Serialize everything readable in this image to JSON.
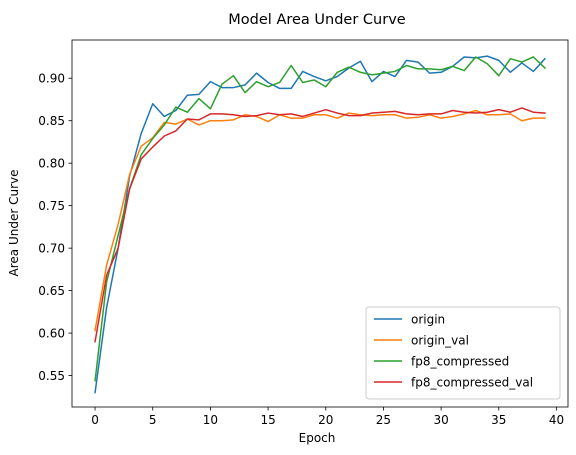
{
  "chart_data": {
    "type": "line",
    "title": "Model Area Under Curve",
    "xlabel": "Epoch",
    "ylabel": "Area Under Curve",
    "xlim": [
      -2,
      41
    ],
    "ylim": [
      0.513,
      0.945
    ],
    "xticks": [
      0,
      5,
      10,
      15,
      20,
      25,
      30,
      35,
      40
    ],
    "yticks": [
      0.55,
      0.6,
      0.65,
      0.7,
      0.75,
      0.8,
      0.85,
      0.9
    ],
    "ytick_labels": [
      "0.55",
      "0.60",
      "0.65",
      "0.70",
      "0.75",
      "0.80",
      "0.85",
      "0.90"
    ],
    "grid": false,
    "legend_position": "lower-right",
    "x": [
      0,
      1,
      2,
      3,
      4,
      5,
      6,
      7,
      8,
      9,
      10,
      11,
      12,
      13,
      14,
      15,
      16,
      17,
      18,
      19,
      20,
      21,
      22,
      23,
      24,
      25,
      26,
      27,
      28,
      29,
      30,
      31,
      32,
      33,
      34,
      35,
      36,
      37,
      38,
      39
    ],
    "series": [
      {
        "name": "origin",
        "color": "#1f77b4",
        "values": [
          0.53,
          0.63,
          0.7,
          0.785,
          0.835,
          0.87,
          0.855,
          0.862,
          0.88,
          0.881,
          0.896,
          0.889,
          0.889,
          0.892,
          0.906,
          0.895,
          0.888,
          0.888,
          0.908,
          0.902,
          0.897,
          0.902,
          0.912,
          0.92,
          0.896,
          0.908,
          0.902,
          0.921,
          0.919,
          0.906,
          0.907,
          0.914,
          0.925,
          0.924,
          0.926,
          0.921,
          0.907,
          0.918,
          0.908,
          0.923
        ]
      },
      {
        "name": "origin_val",
        "color": "#ff7f0e",
        "values": [
          0.603,
          0.68,
          0.728,
          0.787,
          0.82,
          0.83,
          0.848,
          0.846,
          0.852,
          0.845,
          0.85,
          0.85,
          0.851,
          0.857,
          0.855,
          0.849,
          0.857,
          0.853,
          0.853,
          0.857,
          0.857,
          0.853,
          0.859,
          0.857,
          0.856,
          0.857,
          0.857,
          0.853,
          0.854,
          0.857,
          0.853,
          0.855,
          0.858,
          0.862,
          0.857,
          0.857,
          0.858,
          0.85,
          0.853,
          0.853
        ]
      },
      {
        "name": "fp8_compressed",
        "color": "#2ca02c",
        "values": [
          0.544,
          0.66,
          0.715,
          0.77,
          0.81,
          0.829,
          0.845,
          0.866,
          0.86,
          0.876,
          0.864,
          0.893,
          0.903,
          0.883,
          0.896,
          0.89,
          0.895,
          0.915,
          0.895,
          0.898,
          0.89,
          0.907,
          0.913,
          0.907,
          0.904,
          0.906,
          0.908,
          0.915,
          0.911,
          0.911,
          0.91,
          0.914,
          0.909,
          0.925,
          0.917,
          0.903,
          0.923,
          0.919,
          0.925,
          0.912
        ]
      },
      {
        "name": "fp8_compressed_val",
        "color": "#d62728",
        "values": [
          0.59,
          0.668,
          0.7,
          0.77,
          0.805,
          0.819,
          0.832,
          0.838,
          0.852,
          0.851,
          0.858,
          0.858,
          0.857,
          0.855,
          0.856,
          0.859,
          0.857,
          0.858,
          0.855,
          0.859,
          0.863,
          0.859,
          0.856,
          0.856,
          0.859,
          0.86,
          0.861,
          0.858,
          0.857,
          0.858,
          0.858,
          0.862,
          0.86,
          0.859,
          0.86,
          0.863,
          0.86,
          0.865,
          0.86,
          0.859
        ]
      }
    ]
  }
}
